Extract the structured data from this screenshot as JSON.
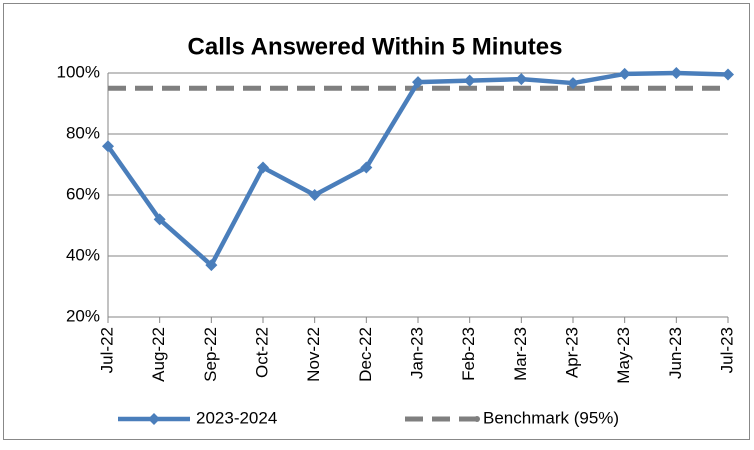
{
  "chart_data": {
    "type": "line",
    "title": "Calls Answered Within 5 Minutes",
    "categories": [
      "Jul-22",
      "Aug-22",
      "Sep-22",
      "Oct-22",
      "Nov-22",
      "Dec-22",
      "Jan-23",
      "Feb-23",
      "Mar-23",
      "Apr-23",
      "May-23",
      "Jun-23",
      "Jul-23"
    ],
    "series": [
      {
        "name": "2023-2024",
        "color": "#4a7ebb",
        "values": [
          76,
          52,
          37,
          69,
          60,
          69,
          97,
          97.5,
          98,
          96.7,
          99.7,
          100,
          99.5
        ]
      },
      {
        "name": "Benchmark (95%)",
        "color": "#7f7f7f",
        "dashed": true,
        "values": [
          95,
          95,
          95,
          95,
          95,
          95,
          95,
          95,
          95,
          95,
          95,
          95,
          95
        ]
      }
    ],
    "ylim": [
      20,
      100
    ],
    "yticks": [
      {
        "value": 20,
        "label": "20%"
      },
      {
        "value": 40,
        "label": "40%"
      },
      {
        "value": 60,
        "label": "60%"
      },
      {
        "value": 80,
        "label": "80%"
      },
      {
        "value": 100,
        "label": "100%"
      }
    ],
    "grid": true,
    "legend": "bottom"
  }
}
